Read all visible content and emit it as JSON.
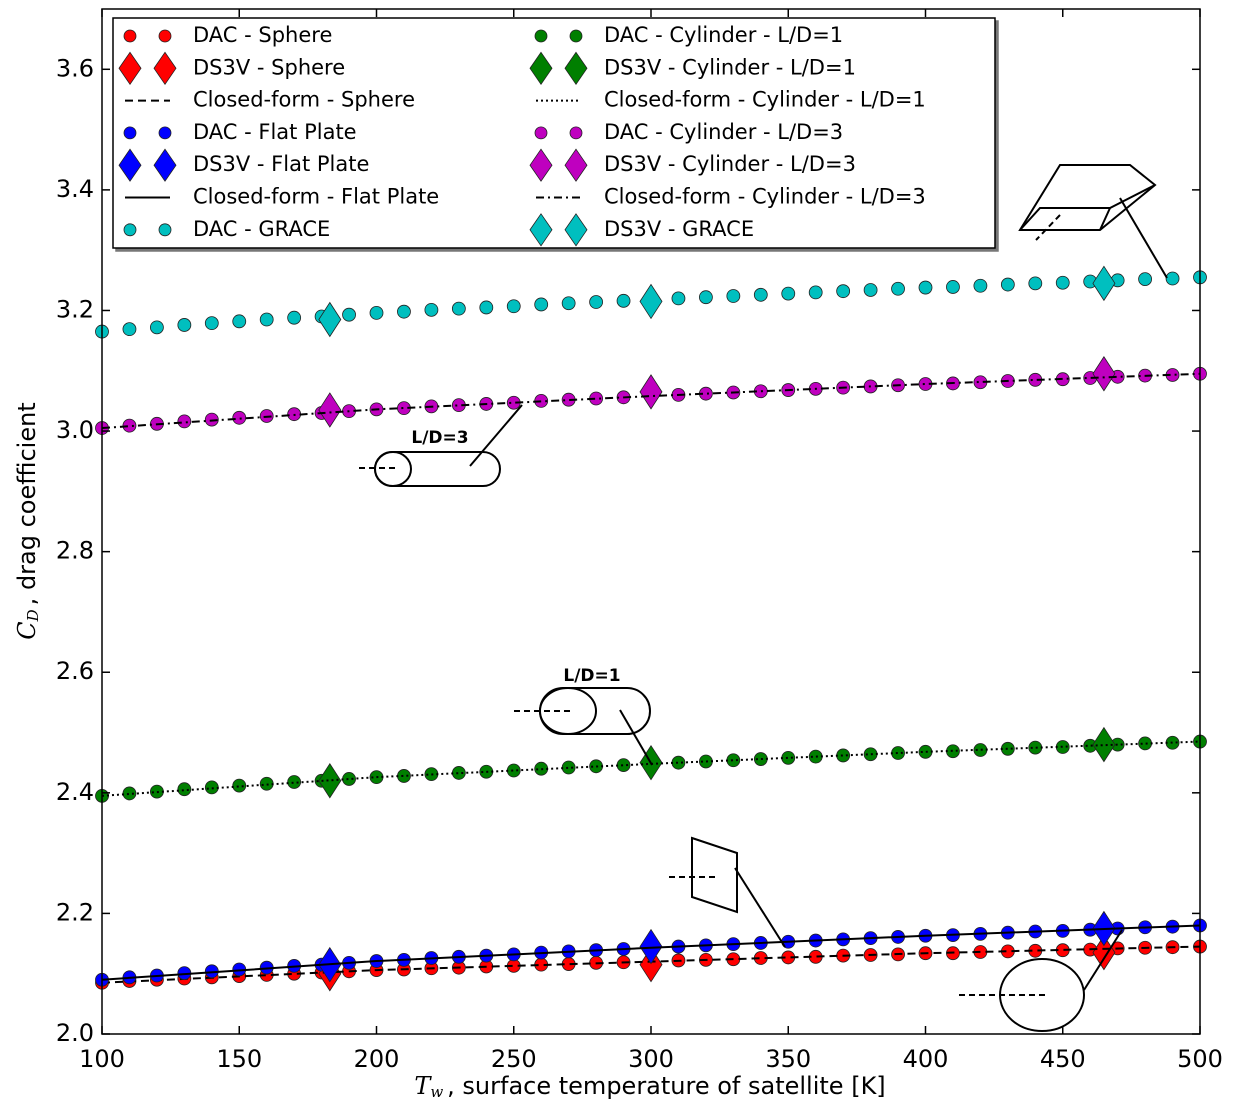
{
  "chart_data": {
    "type": "scatter",
    "xlabel": {
      "symbol": "T",
      "subscript": "w",
      "text": ", surface temperature of satellite [K]"
    },
    "ylabel": {
      "symbol": "C",
      "subscript": "D",
      "text": ", drag coefficient"
    },
    "xlim": [
      100,
      500
    ],
    "ylim": [
      2.0,
      3.7
    ],
    "xticks": [
      100,
      150,
      200,
      250,
      300,
      350,
      400,
      450,
      500
    ],
    "yticks": [
      {
        "value": 2.0,
        "label": "2.0"
      },
      2.2,
      2.4,
      2.6,
      2.8,
      {
        "value": 3.0,
        "label": "3.0"
      },
      3.2,
      3.4,
      3.6
    ],
    "legend": "upper left",
    "annotations": [
      "L/D=3",
      "L/D=1"
    ],
    "x": [
      100,
      110,
      120,
      130,
      140,
      150,
      160,
      170,
      180,
      190,
      200,
      210,
      220,
      230,
      240,
      250,
      260,
      270,
      280,
      290,
      300,
      310,
      320,
      330,
      340,
      350,
      360,
      370,
      380,
      390,
      400,
      410,
      420,
      430,
      440,
      450,
      460,
      470,
      480,
      490,
      500
    ],
    "series": [
      {
        "name": "DAC - Sphere",
        "color": "#ff0000",
        "marker": "o",
        "values": [
          2.085,
          2.088,
          2.09,
          2.092,
          2.094,
          2.096,
          2.098,
          2.1,
          2.102,
          2.104,
          2.106,
          2.107,
          2.109,
          2.11,
          2.112,
          2.113,
          2.115,
          2.116,
          2.118,
          2.119,
          2.12,
          2.122,
          2.123,
          2.124,
          2.126,
          2.127,
          2.128,
          2.13,
          2.131,
          2.132,
          2.134,
          2.134,
          2.136,
          2.137,
          2.138,
          2.139,
          2.14,
          2.142,
          2.143,
          2.144,
          2.145
        ]
      },
      {
        "name": "DS3V - Sphere",
        "color": "#ff0000",
        "marker": "D",
        "x": [
          183,
          300,
          465
        ],
        "values": [
          2.1,
          2.115,
          2.135
        ]
      },
      {
        "name": "Closed-form - Sphere",
        "color": "#000000",
        "marker": "line",
        "linestyle": "dashed",
        "x": [
          100,
          200,
          300,
          400,
          500
        ],
        "values": [
          2.085,
          2.106,
          2.12,
          2.134,
          2.145
        ]
      },
      {
        "name": "DAC - Flat Plate",
        "color": "#0000ff",
        "marker": "o",
        "values": [
          2.09,
          2.094,
          2.097,
          2.101,
          2.104,
          2.107,
          2.11,
          2.113,
          2.115,
          2.118,
          2.121,
          2.123,
          2.126,
          2.128,
          2.13,
          2.132,
          2.135,
          2.137,
          2.139,
          2.141,
          2.143,
          2.145,
          2.147,
          2.149,
          2.151,
          2.153,
          2.155,
          2.157,
          2.159,
          2.161,
          2.163,
          2.164,
          2.166,
          2.168,
          2.17,
          2.171,
          2.173,
          2.175,
          2.177,
          2.178,
          2.18
        ]
      },
      {
        "name": "DS3V - Flat Plate",
        "color": "#0000ff",
        "marker": "D",
        "x": [
          183,
          300,
          465
        ],
        "values": [
          2.115,
          2.145,
          2.175
        ]
      },
      {
        "name": "Closed-form - Flat Plate",
        "color": "#000000",
        "marker": "line",
        "linestyle": "solid",
        "x": [
          100,
          200,
          300,
          400,
          500
        ],
        "values": [
          2.09,
          2.121,
          2.143,
          2.163,
          2.18
        ]
      },
      {
        "name": "DAC - GRACE",
        "color": "#00bfbf",
        "marker": "o",
        "values": [
          3.165,
          3.169,
          3.172,
          3.176,
          3.179,
          3.182,
          3.185,
          3.188,
          3.19,
          3.193,
          3.196,
          3.198,
          3.201,
          3.203,
          3.205,
          3.207,
          3.21,
          3.212,
          3.214,
          3.216,
          3.218,
          3.22,
          3.222,
          3.224,
          3.226,
          3.228,
          3.23,
          3.232,
          3.234,
          3.236,
          3.238,
          3.239,
          3.241,
          3.243,
          3.245,
          3.246,
          3.248,
          3.25,
          3.252,
          3.253,
          3.255
        ]
      },
      {
        "name": "DAC - Cylinder - L/D=1",
        "color": "#007f00",
        "marker": "o",
        "values": [
          2.395,
          2.399,
          2.402,
          2.406,
          2.409,
          2.412,
          2.415,
          2.418,
          2.42,
          2.423,
          2.426,
          2.428,
          2.431,
          2.433,
          2.435,
          2.437,
          2.44,
          2.442,
          2.444,
          2.446,
          2.448,
          2.45,
          2.452,
          2.454,
          2.456,
          2.458,
          2.46,
          2.462,
          2.464,
          2.466,
          2.468,
          2.469,
          2.471,
          2.473,
          2.475,
          2.476,
          2.478,
          2.48,
          2.482,
          2.483,
          2.485
        ]
      },
      {
        "name": "DS3V - Cylinder - L/D=1",
        "color": "#007f00",
        "marker": "D",
        "x": [
          183,
          300,
          465
        ],
        "values": [
          2.42,
          2.45,
          2.48
        ]
      },
      {
        "name": "Closed-form - Cylinder - L/D=1",
        "color": "#000000",
        "marker": "line",
        "linestyle": "dotted",
        "x": [
          100,
          200,
          300,
          400,
          500
        ],
        "values": [
          2.395,
          2.426,
          2.448,
          2.468,
          2.485
        ]
      },
      {
        "name": "DAC - Cylinder - L/D=3",
        "color": "#bf00bf",
        "marker": "o",
        "values": [
          3.005,
          3.009,
          3.012,
          3.016,
          3.019,
          3.022,
          3.025,
          3.028,
          3.03,
          3.033,
          3.036,
          3.038,
          3.041,
          3.043,
          3.045,
          3.047,
          3.05,
          3.052,
          3.054,
          3.056,
          3.058,
          3.06,
          3.062,
          3.064,
          3.066,
          3.068,
          3.07,
          3.072,
          3.074,
          3.076,
          3.078,
          3.079,
          3.081,
          3.083,
          3.085,
          3.086,
          3.088,
          3.09,
          3.092,
          3.093,
          3.095
        ]
      },
      {
        "name": "DS3V - Cylinder - L/D=3",
        "color": "#bf00bf",
        "marker": "D",
        "x": [
          183,
          300,
          465
        ],
        "values": [
          3.035,
          3.065,
          3.095
        ]
      },
      {
        "name": "Closed-form - Cylinder - L/D=3",
        "color": "#000000",
        "marker": "line",
        "linestyle": "dashdot",
        "x": [
          100,
          200,
          300,
          400,
          500
        ],
        "values": [
          3.005,
          3.036,
          3.058,
          3.078,
          3.095
        ]
      },
      {
        "name": "DS3V - GRACE",
        "color": "#00bfbf",
        "marker": "D",
        "x": [
          183,
          300,
          465
        ],
        "values": [
          3.185,
          3.215,
          3.245
        ]
      }
    ]
  }
}
